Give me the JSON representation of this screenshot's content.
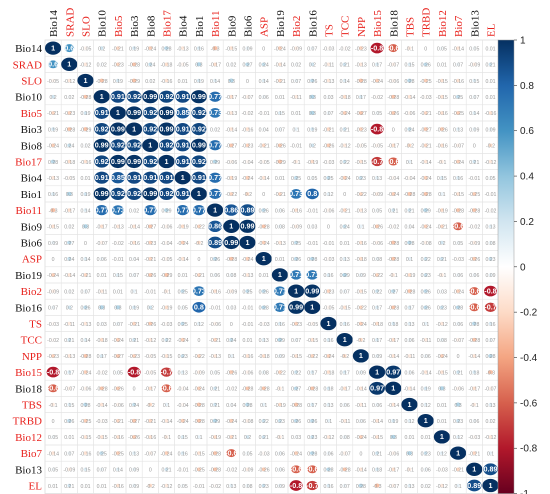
{
  "chart_data": {
    "type": "heatmap",
    "variables": [
      "Bio14",
      "SRAD",
      "SLO",
      "Bio10",
      "Bio5",
      "Bio3",
      "Bio8",
      "Bio17",
      "Bio4",
      "Bio1",
      "Bio11",
      "Bio9",
      "Bio6",
      "ASP",
      "Bio19",
      "Bio2",
      "Bio16",
      "TS",
      "TCC",
      "NPP",
      "Bio15",
      "Bio18",
      "TBS",
      "TRBD",
      "Bio12",
      "Bio7",
      "Bio13",
      "EL"
    ],
    "highlighted_variables": [
      "SRAD",
      "SLO",
      "Bio5",
      "Bio17",
      "Bio11",
      "ASP",
      "Bio2",
      "TS",
      "TCC",
      "NPP",
      "Bio15",
      "TBS",
      "TRBD",
      "Bio12",
      "Bio7",
      "EL"
    ],
    "label_colors": {
      "normal": "#111111",
      "highlighted": "#e8211c"
    },
    "color_scale": {
      "min": -1,
      "max": 1,
      "ticks": [
        "1",
        "0.8",
        "0.6",
        "0.4",
        "0.2",
        "0",
        "-0.2",
        "-0.4",
        "-0.6",
        "-0.8",
        "-1"
      ],
      "stops": [
        "#67001f",
        "#b2182b",
        "#d6604d",
        "#f4a582",
        "#fddbc7",
        "#ffffff",
        "#d1e5f0",
        "#92c5de",
        "#4393c3",
        "#2166ac",
        "#053061"
      ]
    },
    "labeled_correlations": [
      [
        "Bio14",
        "SRAD",
        0.6
      ],
      [
        "Bio14",
        "Bio15",
        -0.8
      ],
      [
        "Bio14",
        "Bio18",
        -0.6
      ],
      [
        "Bio10",
        "Bio5",
        0.91
      ],
      [
        "Bio10",
        "Bio3",
        0.92
      ],
      [
        "Bio10",
        "Bio8",
        0.99
      ],
      [
        "Bio10",
        "Bio17",
        0.92
      ],
      [
        "Bio10",
        "Bio4",
        0.91
      ],
      [
        "Bio10",
        "Bio1",
        0.99
      ],
      [
        "Bio10",
        "Bio11",
        0.77
      ],
      [
        "Bio5",
        "Bio3",
        0.99
      ],
      [
        "Bio5",
        "Bio8",
        0.92
      ],
      [
        "Bio5",
        "Bio17",
        0.99
      ],
      [
        "Bio5",
        "Bio4",
        0.85
      ],
      [
        "Bio5",
        "Bio1",
        0.92
      ],
      [
        "Bio5",
        "Bio11",
        0.73
      ],
      [
        "Bio3",
        "Bio8",
        0.92
      ],
      [
        "Bio3",
        "Bio17",
        0.99
      ],
      [
        "Bio3",
        "Bio4",
        0.91
      ],
      [
        "Bio3",
        "Bio1",
        0.92
      ],
      [
        "Bio3",
        "Bio15",
        -0.8
      ],
      [
        "Bio8",
        "Bio17",
        0.92
      ],
      [
        "Bio8",
        "Bio4",
        0.91
      ],
      [
        "Bio8",
        "Bio1",
        0.99
      ],
      [
        "Bio8",
        "Bio11",
        0.77
      ],
      [
        "Bio17",
        "Bio4",
        0.91
      ],
      [
        "Bio17",
        "Bio1",
        0.92
      ],
      [
        "Bio17",
        "Bio15",
        -0.7
      ],
      [
        "Bio17",
        "Bio18",
        -0.6
      ],
      [
        "Bio4",
        "Bio1",
        0.91
      ],
      [
        "Bio4",
        "Bio11",
        0.77
      ],
      [
        "Bio1",
        "Bio11",
        0.77
      ],
      [
        "Bio1",
        "Bio2",
        0.73
      ],
      [
        "Bio1",
        "Bio16",
        0.8
      ],
      [
        "Bio11",
        "Bio9",
        0.86
      ],
      [
        "Bio11",
        "Bio6",
        0.89
      ],
      [
        "Bio9",
        "Bio6",
        0.99
      ],
      [
        "Bio9",
        "Bio7",
        -0.6
      ],
      [
        "Bio19",
        "Bio2",
        0.71
      ],
      [
        "Bio19",
        "Bio16",
        0.71
      ],
      [
        "Bio2",
        "Bio16",
        0.99
      ],
      [
        "Bio2",
        "Bio13",
        -0.6
      ],
      [
        "Bio2",
        "EL",
        -0.8
      ],
      [
        "Bio16",
        "Bio13",
        -0.6
      ],
      [
        "Bio16",
        "EL",
        -0.7
      ],
      [
        "Bio15",
        "Bio18",
        0.97
      ],
      [
        "Bio13",
        "EL",
        0.89
      ]
    ]
  }
}
